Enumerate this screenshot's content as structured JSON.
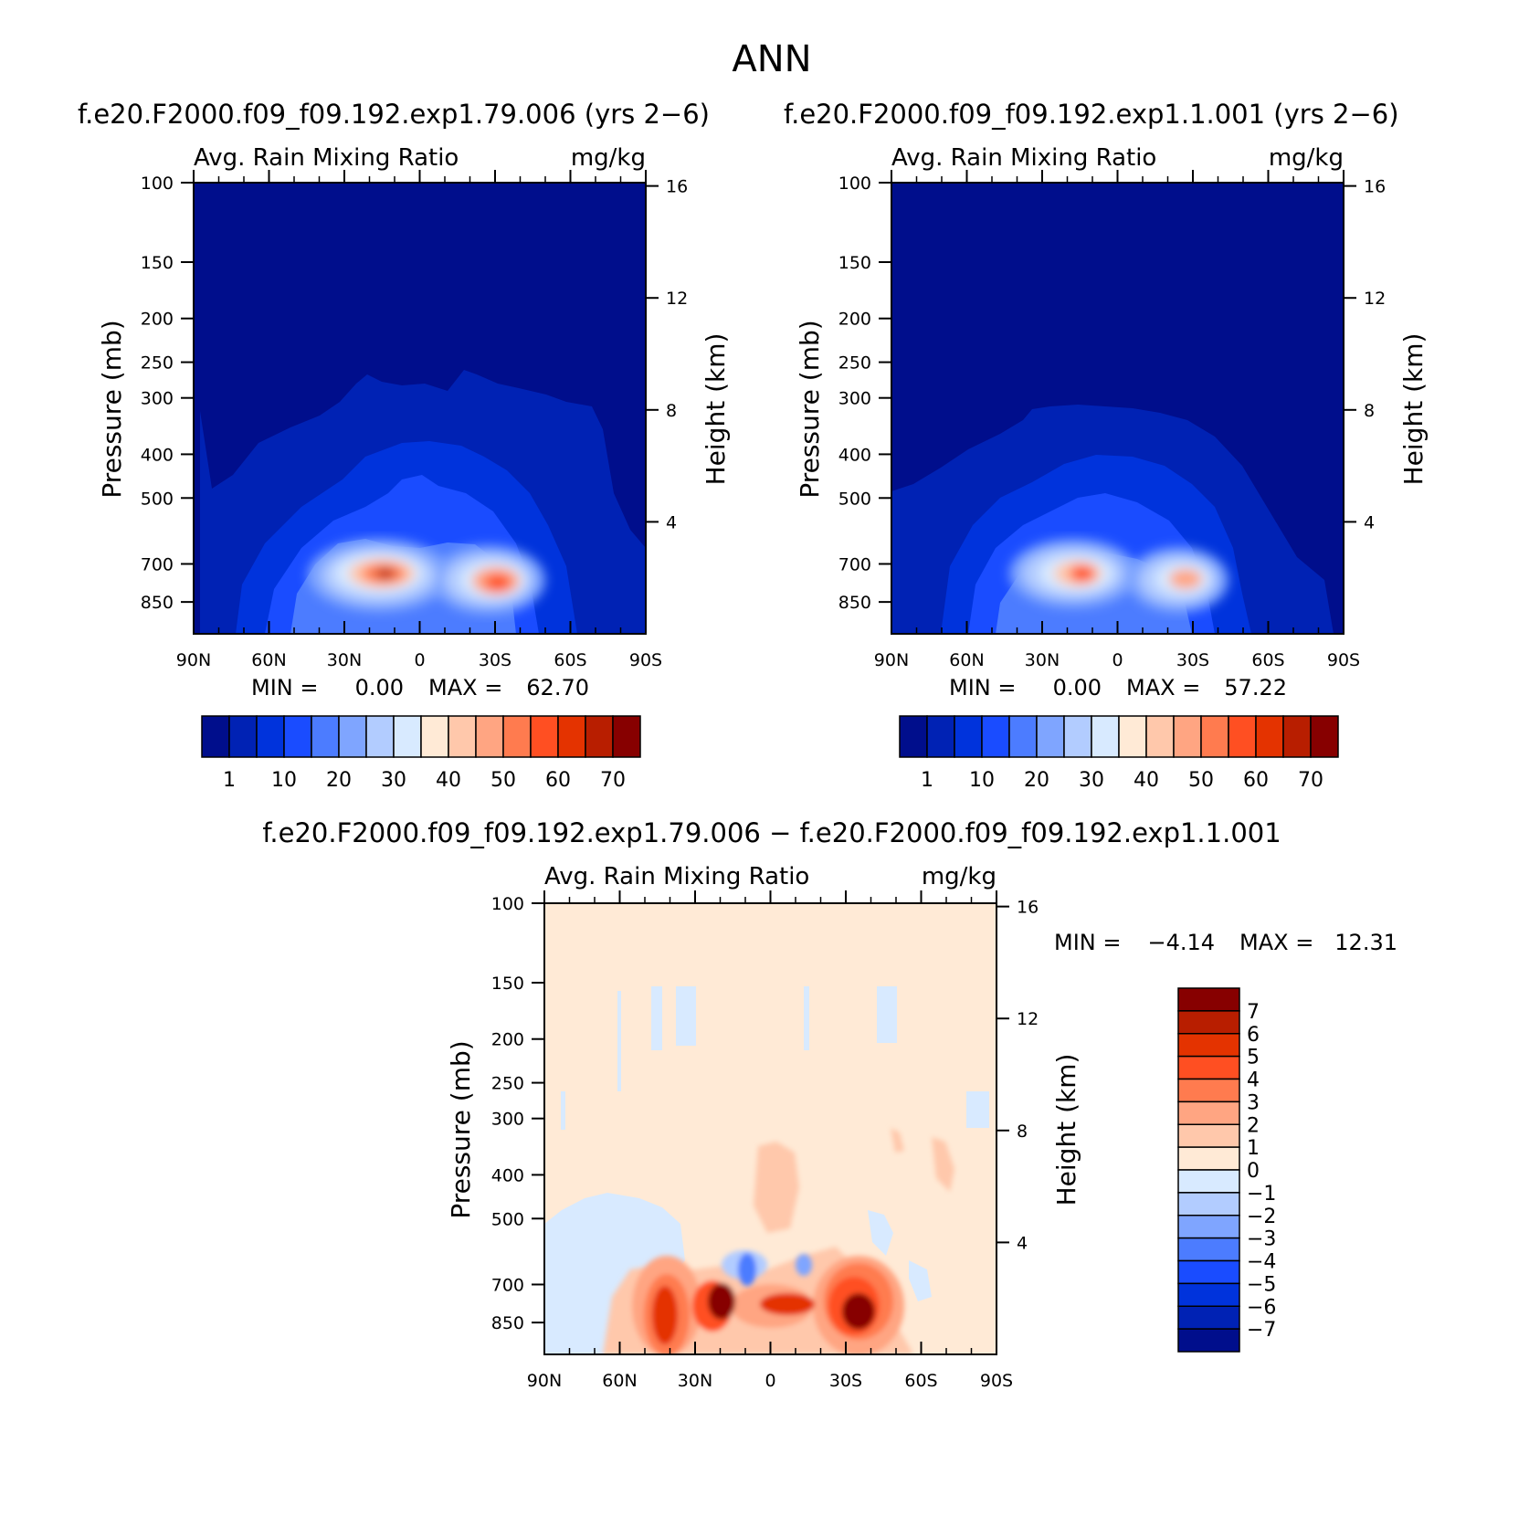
{
  "figure": {
    "title": "ANN"
  },
  "colors": {
    "abs_levels": [
      "#000e8c",
      "#0022b4",
      "#0033dc",
      "#1a4cff",
      "#4c7cff",
      "#7fa5ff",
      "#b2ccff",
      "#d8eaff",
      "#ffead6",
      "#ffc8ab",
      "#ffa582",
      "#ff7b4f",
      "#ff4f22",
      "#e43300",
      "#b81e00",
      "#870000"
    ],
    "diff_levels": [
      "#870000",
      "#b81e00",
      "#e43300",
      "#ff4f22",
      "#ff7b4f",
      "#ffa582",
      "#ffc8ab",
      "#ffead6",
      "#d8eaff",
      "#b2ccff",
      "#7fa5ff",
      "#4c7cff",
      "#1a4cff",
      "#0033dc",
      "#0022b4",
      "#000e8c"
    ]
  },
  "chart_data": [
    {
      "type": "heatmap",
      "panel": "case",
      "title": "f.e20.F2000.f09_f09.192.exp1.79.006 (yrs 2−6)",
      "field_label": "Avg. Rain Mixing Ratio",
      "units": "mg/kg",
      "ylabel": "Pressure (mb)",
      "ylabel_right": "Height (km)",
      "x_ticks": [
        "90N",
        "60N",
        "30N",
        "0",
        "30S",
        "60S",
        "90S"
      ],
      "y_ticks": [
        "100",
        "150",
        "200",
        "250",
        "300",
        "400",
        "500",
        "700",
        "850"
      ],
      "y_ticks_right": [
        "16",
        "12",
        "8",
        "4"
      ],
      "ylim": [
        100,
        1000
      ],
      "y_scale": "log",
      "min_label": "MIN =",
      "min_value": "0.00",
      "max_label": "MAX =",
      "max_value": "62.70",
      "colorbar_labels": [
        "1",
        "10",
        "20",
        "30",
        "40",
        "50",
        "60",
        "70"
      ],
      "levels": [
        1,
        5,
        10,
        15,
        20,
        25,
        30,
        35,
        40,
        45,
        50,
        55,
        60,
        65,
        70
      ]
    },
    {
      "type": "heatmap",
      "panel": "control",
      "title": "f.e20.F2000.f09_f09.192.exp1.1.001 (yrs 2−6)",
      "field_label": "Avg. Rain Mixing Ratio",
      "units": "mg/kg",
      "ylabel": "Pressure (mb)",
      "ylabel_right": "Height (km)",
      "x_ticks": [
        "90N",
        "60N",
        "30N",
        "0",
        "30S",
        "60S",
        "90S"
      ],
      "y_ticks": [
        "100",
        "150",
        "200",
        "250",
        "300",
        "400",
        "500",
        "700",
        "850"
      ],
      "y_ticks_right": [
        "16",
        "12",
        "8",
        "4"
      ],
      "ylim": [
        100,
        1000
      ],
      "y_scale": "log",
      "min_label": "MIN =",
      "min_value": "0.00",
      "max_label": "MAX =",
      "max_value": "57.22",
      "colorbar_labels": [
        "1",
        "10",
        "20",
        "30",
        "40",
        "50",
        "60",
        "70"
      ],
      "levels": [
        1,
        5,
        10,
        15,
        20,
        25,
        30,
        35,
        40,
        45,
        50,
        55,
        60,
        65,
        70
      ]
    },
    {
      "type": "heatmap",
      "panel": "difference",
      "title": "f.e20.F2000.f09_f09.192.exp1.79.006 − f.e20.F2000.f09_f09.192.exp1.1.001",
      "field_label": "Avg. Rain Mixing Ratio",
      "units": "mg/kg",
      "ylabel": "Pressure (mb)",
      "ylabel_right": "Height (km)",
      "x_ticks": [
        "90N",
        "60N",
        "30N",
        "0",
        "30S",
        "60S",
        "90S"
      ],
      "y_ticks": [
        "100",
        "150",
        "200",
        "250",
        "300",
        "400",
        "500",
        "700",
        "850"
      ],
      "y_ticks_right": [
        "16",
        "12",
        "8",
        "4"
      ],
      "ylim": [
        100,
        1000
      ],
      "y_scale": "log",
      "min_label": "MIN =",
      "min_value": "−4.14",
      "max_label": "MAX =",
      "max_value": "12.31",
      "colorbar_labels": [
        "7",
        "6",
        "5",
        "4",
        "3",
        "2",
        "1",
        "0",
        "−1",
        "−2",
        "−3",
        "−4",
        "−5",
        "−6",
        "−7"
      ],
      "levels": [
        7,
        6,
        5,
        4,
        3,
        2,
        1,
        0,
        -1,
        -2,
        -3,
        -4,
        -5,
        -6,
        -7
      ]
    }
  ]
}
